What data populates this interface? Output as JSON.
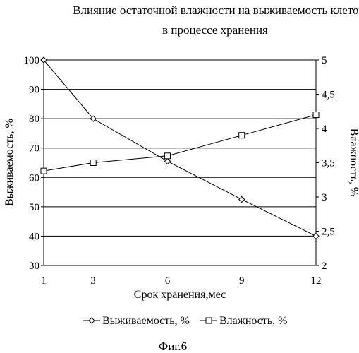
{
  "chart_data": {
    "type": "line",
    "title_line1": "Влияние остаточной влажности на выживаемость клеток",
    "title_line2": "в процессе хранения",
    "xlabel": "Срок хранения,мес",
    "ylabel_left": "Выживаемость, %",
    "ylabel_right": "Влажность, %",
    "x_ticks": [
      "1",
      "3",
      "6",
      "9",
      "12"
    ],
    "y_left_ticks": [
      "30",
      "40",
      "50",
      "60",
      "70",
      "80",
      "90",
      "100"
    ],
    "y_right_ticks": [
      "2",
      "2,5",
      "3",
      "3,5",
      "4",
      "4,5",
      "5"
    ],
    "ylim_left": [
      30,
      100
    ],
    "ylim_right": [
      2,
      5
    ],
    "grid": "horizontal",
    "legend_position": "bottom",
    "series": [
      {
        "name": "Выживаемость, %",
        "axis": "left",
        "marker": "diamond",
        "x": [
          1,
          3,
          6,
          9,
          12
        ],
        "values": [
          100,
          80,
          65.5,
          52.5,
          40
        ]
      },
      {
        "name": "Влажность, %",
        "axis": "right",
        "marker": "square",
        "x": [
          1,
          3,
          6,
          9,
          12
        ],
        "values": [
          3.38,
          3.5,
          3.6,
          3.9,
          4.2
        ]
      }
    ]
  },
  "caption": "Фиг.6",
  "colors": {
    "line": "#000000",
    "background": "#ffffff",
    "marker_fill": "#ffffff"
  }
}
